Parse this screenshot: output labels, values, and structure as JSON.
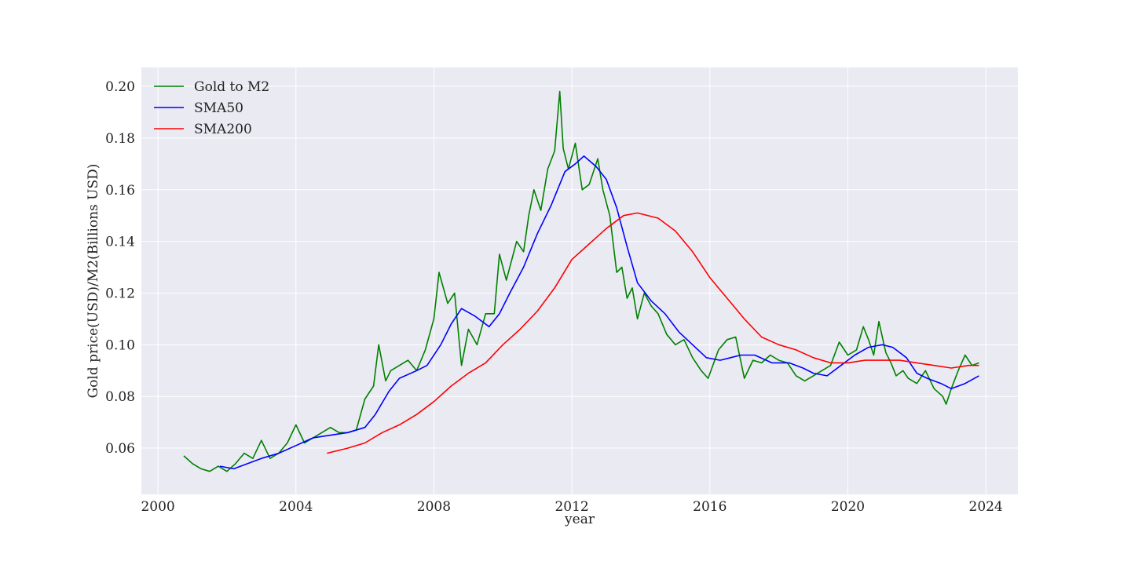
{
  "chart_data": {
    "type": "line",
    "x_label": "year",
    "y_label": "Gold price(USD)/M2(Billions USD)",
    "xlim": [
      1999.52,
      2024.93
    ],
    "ylim": [
      0.0421,
      0.2073
    ],
    "xticks": [
      2000,
      2004,
      2008,
      2012,
      2016,
      2020,
      2024
    ],
    "yticks": [
      0.06,
      0.08,
      {
        "value": 0.1,
        "label": "0.10"
      },
      0.12,
      0.14,
      0.16,
      0.18,
      {
        "value": 0.2,
        "label": "0.20"
      }
    ],
    "grid": true,
    "legend": "upper left",
    "series": [
      {
        "name": "Gold to M2",
        "color": "#008000",
        "x": [
          2000.75,
          2001.0,
          2001.25,
          2001.5,
          2001.75,
          2002.0,
          2002.25,
          2002.5,
          2002.75,
          2003.0,
          2003.25,
          2003.5,
          2003.75,
          2004.0,
          2004.25,
          2004.5,
          2004.75,
          2005.0,
          2005.25,
          2005.5,
          2005.75,
          2006.0,
          2006.25,
          2006.4,
          2006.6,
          2006.75,
          2007.0,
          2007.25,
          2007.5,
          2007.75,
          2008.0,
          2008.15,
          2008.4,
          2008.6,
          2008.8,
          2009.0,
          2009.25,
          2009.5,
          2009.75,
          2009.9,
          2010.1,
          2010.4,
          2010.6,
          2010.75,
          2010.9,
          2011.1,
          2011.3,
          2011.5,
          2011.65,
          2011.75,
          2011.9,
          2012.1,
          2012.3,
          2012.5,
          2012.75,
          2012.9,
          2013.1,
          2013.3,
          2013.45,
          2013.6,
          2013.75,
          2013.9,
          2014.1,
          2014.3,
          2014.5,
          2014.75,
          2015.0,
          2015.25,
          2015.5,
          2015.75,
          2015.95,
          2016.25,
          2016.5,
          2016.75,
          2017.0,
          2017.25,
          2017.5,
          2017.75,
          2018.0,
          2018.25,
          2018.5,
          2018.75,
          2019.0,
          2019.25,
          2019.5,
          2019.75,
          2020.0,
          2020.25,
          2020.45,
          2020.6,
          2020.75,
          2020.9,
          2021.1,
          2021.25,
          2021.4,
          2021.6,
          2021.75,
          2022.0,
          2022.25,
          2022.5,
          2022.75,
          2022.85,
          2023.0,
          2023.2,
          2023.4,
          2023.6,
          2023.8
        ],
        "values": [
          0.057,
          0.054,
          0.052,
          0.051,
          0.053,
          0.051,
          0.054,
          0.058,
          0.056,
          0.063,
          0.056,
          0.058,
          0.062,
          0.069,
          0.062,
          0.064,
          0.066,
          0.068,
          0.066,
          0.066,
          0.067,
          0.079,
          0.084,
          0.1,
          0.086,
          0.09,
          0.092,
          0.094,
          0.09,
          0.098,
          0.11,
          0.128,
          0.116,
          0.12,
          0.092,
          0.106,
          0.1,
          0.112,
          0.112,
          0.135,
          0.125,
          0.14,
          0.136,
          0.15,
          0.16,
          0.152,
          0.168,
          0.175,
          0.198,
          0.176,
          0.168,
          0.178,
          0.16,
          0.162,
          0.172,
          0.16,
          0.15,
          0.128,
          0.13,
          0.118,
          0.122,
          0.11,
          0.12,
          0.115,
          0.112,
          0.104,
          0.1,
          0.102,
          0.095,
          0.09,
          0.087,
          0.098,
          0.102,
          0.103,
          0.087,
          0.094,
          0.093,
          0.096,
          0.094,
          0.093,
          0.088,
          0.086,
          0.088,
          0.09,
          0.092,
          0.101,
          0.096,
          0.098,
          0.107,
          0.102,
          0.096,
          0.109,
          0.097,
          0.093,
          0.088,
          0.09,
          0.087,
          0.085,
          0.09,
          0.083,
          0.08,
          0.077,
          0.083,
          0.09,
          0.096,
          0.092,
          0.093
        ]
      },
      {
        "name": "SMA50",
        "color": "#0000ff",
        "x": [
          2001.8,
          2002.2,
          2002.6,
          2003.0,
          2003.5,
          2004.0,
          2004.5,
          2005.0,
          2005.5,
          2006.0,
          2006.3,
          2006.7,
          2007.0,
          2007.5,
          2007.8,
          2008.2,
          2008.5,
          2008.8,
          2009.2,
          2009.6,
          2009.9,
          2010.2,
          2010.6,
          2011.0,
          2011.4,
          2011.8,
          2012.1,
          2012.35,
          2012.7,
          2013.0,
          2013.3,
          2013.6,
          2013.9,
          2014.3,
          2014.7,
          2015.1,
          2015.5,
          2015.9,
          2016.3,
          2016.6,
          2016.9,
          2017.3,
          2017.8,
          2018.3,
          2018.7,
          2019.0,
          2019.4,
          2019.8,
          2020.2,
          2020.6,
          2021.0,
          2021.3,
          2021.7,
          2022.0,
          2022.3,
          2022.7,
          2023.0,
          2023.4,
          2023.8
        ],
        "values": [
          0.053,
          0.052,
          0.054,
          0.056,
          0.058,
          0.061,
          0.064,
          0.065,
          0.066,
          0.068,
          0.073,
          0.082,
          0.087,
          0.09,
          0.092,
          0.1,
          0.108,
          0.114,
          0.111,
          0.107,
          0.112,
          0.12,
          0.13,
          0.143,
          0.154,
          0.167,
          0.17,
          0.173,
          0.169,
          0.164,
          0.153,
          0.138,
          0.124,
          0.117,
          0.112,
          0.105,
          0.1,
          0.095,
          0.094,
          0.095,
          0.096,
          0.096,
          0.093,
          0.093,
          0.091,
          0.089,
          0.088,
          0.092,
          0.096,
          0.099,
          0.1,
          0.099,
          0.095,
          0.089,
          0.087,
          0.085,
          0.083,
          0.085,
          0.088
        ]
      },
      {
        "name": "SMA200",
        "color": "#ff0000",
        "x": [
          2004.9,
          2005.5,
          2006.0,
          2006.5,
          2007.0,
          2007.5,
          2008.0,
          2008.5,
          2009.0,
          2009.5,
          2010.0,
          2010.5,
          2011.0,
          2011.5,
          2012.0,
          2012.5,
          2013.0,
          2013.5,
          2013.9,
          2014.5,
          2015.0,
          2015.5,
          2016.0,
          2016.5,
          2017.0,
          2017.5,
          2018.0,
          2018.5,
          2019.0,
          2019.5,
          2020.0,
          2020.5,
          2021.0,
          2021.5,
          2022.0,
          2022.5,
          2023.0,
          2023.5,
          2023.8
        ],
        "values": [
          0.058,
          0.06,
          0.062,
          0.066,
          0.069,
          0.073,
          0.078,
          0.084,
          0.089,
          0.093,
          0.1,
          0.106,
          0.113,
          0.122,
          0.133,
          0.139,
          0.145,
          0.15,
          0.151,
          0.149,
          0.144,
          0.136,
          0.126,
          0.118,
          0.11,
          0.103,
          0.1,
          0.098,
          0.095,
          0.093,
          0.093,
          0.094,
          0.094,
          0.094,
          0.093,
          0.092,
          0.091,
          0.092,
          0.092
        ]
      }
    ]
  }
}
